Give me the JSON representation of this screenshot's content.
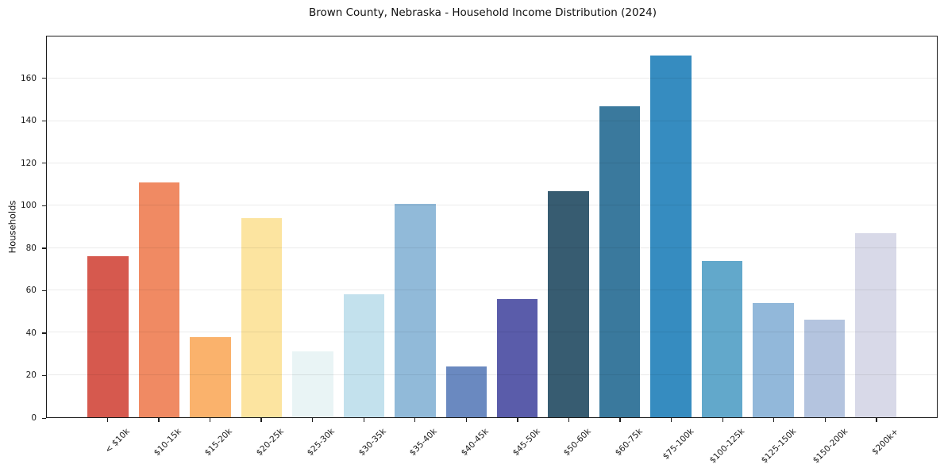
{
  "chart_data": {
    "type": "bar",
    "title": "Brown County, Nebraska - Household Income Distribution (2024)",
    "xlabel": "",
    "ylabel": "Households",
    "categories": [
      "< $10k",
      "$10-15k",
      "$15-20k",
      "$20-25k",
      "$25-30k",
      "$30-35k",
      "$35-40k",
      "$40-45k",
      "$45-50k",
      "$50-60k",
      "$60-75k",
      "$75-100k",
      "$100-125k",
      "$125-150k",
      "$150-200k",
      "$200k+"
    ],
    "values": [
      76,
      111,
      38,
      94,
      31,
      58,
      101,
      24,
      56,
      107,
      147,
      171,
      74,
      54,
      46,
      87
    ],
    "bar_colors": [
      "#d6594e",
      "#f08a63",
      "#fab26c",
      "#fce4a0",
      "#e9f4f5",
      "#c3e1ed",
      "#91bad9",
      "#6a89c0",
      "#5a5caa",
      "#375c71",
      "#3a799d",
      "#368cc0",
      "#62a8cb",
      "#92b8da",
      "#b4c4df",
      "#d8d9e8"
    ],
    "ylim": [
      0,
      180
    ],
    "yticks": [
      0,
      20,
      40,
      60,
      80,
      100,
      120,
      140,
      160
    ],
    "grid": "horizontal",
    "legend": "none",
    "colors": {
      "spine": "#1c1c1c",
      "grid": "rgba(0,0,0,0.08)",
      "text": "#1a1a1a",
      "background": "#ffffff"
    }
  }
}
